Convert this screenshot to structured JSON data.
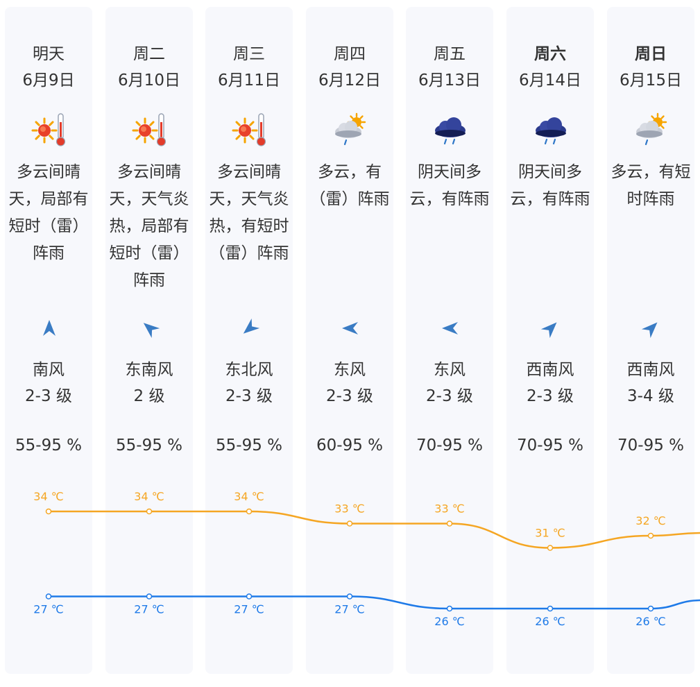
{
  "colors": {
    "high_line": "#f5a623",
    "low_line": "#1e7ae8",
    "card_bg": "#f7f8fc",
    "wind_arrow": "#3a7cc4",
    "sun": "#f6a400",
    "cloud_dark": "#2b3a8c"
  },
  "days": [
    {
      "name": "明天",
      "date": "6月9日",
      "weekend": false,
      "icon": "sunny-hot-icon",
      "desc": [
        "多云间晴",
        "天，局部有",
        "短时（雷）",
        "阵雨"
      ],
      "wind_dir": "南风",
      "wind_level": "2-3 级",
      "wind_deg": 0,
      "humidity": "55-95 %"
    },
    {
      "name": "周二",
      "date": "6月10日",
      "weekend": false,
      "icon": "sunny-hot-icon",
      "desc": [
        "多云间晴",
        "天，天气炎",
        "热，局部有",
        "短时（雷）",
        "阵雨"
      ],
      "wind_dir": "东南风",
      "wind_level": "2 级",
      "wind_deg": -50,
      "humidity": "55-95 %"
    },
    {
      "name": "周三",
      "date": "6月11日",
      "weekend": false,
      "icon": "sunny-hot-icon",
      "desc": [
        "多云间晴",
        "天，天气炎",
        "热，有短时",
        "（雷）阵雨"
      ],
      "wind_dir": "东北风",
      "wind_level": "2-3 级",
      "wind_deg": -130,
      "humidity": "55-95 %"
    },
    {
      "name": "周四",
      "date": "6月12日",
      "weekend": false,
      "icon": "partly-cloudy-rain-icon",
      "desc": [
        "多云，有",
        "（雷）阵雨"
      ],
      "wind_dir": "东风",
      "wind_level": "2-3 级",
      "wind_deg": -90,
      "humidity": "60-95 %"
    },
    {
      "name": "周五",
      "date": "6月13日",
      "weekend": false,
      "icon": "cloudy-rain-icon",
      "desc": [
        "阴天间多",
        "云，有阵雨"
      ],
      "wind_dir": "东风",
      "wind_level": "2-3 级",
      "wind_deg": -90,
      "humidity": "70-95 %"
    },
    {
      "name": "周六",
      "date": "6月14日",
      "weekend": true,
      "icon": "cloudy-rain-icon",
      "desc": [
        "阴天间多",
        "云，有阵雨"
      ],
      "wind_dir": "西南风",
      "wind_level": "2-3 级",
      "wind_deg": 45,
      "humidity": "70-95 %"
    },
    {
      "name": "周日",
      "date": "6月15日",
      "weekend": true,
      "icon": "partly-cloudy-rain-icon",
      "desc": [
        "多云，有短",
        "时阵雨"
      ],
      "wind_dir": "西南风",
      "wind_level": "3-4 级",
      "wind_deg": 45,
      "humidity": "70-95 %"
    }
  ],
  "chart_data": {
    "type": "line",
    "categories": [
      "6月9日",
      "6月10日",
      "6月11日",
      "6月12日",
      "6月13日",
      "6月14日",
      "6月15日"
    ],
    "unit": "℃",
    "series": [
      {
        "key": "high",
        "values": [
          34,
          34,
          34,
          33,
          33,
          31,
          32
        ],
        "labels": [
          "34 ℃",
          "34 ℃",
          "34 ℃",
          "33 ℃",
          "33 ℃",
          "31 ℃",
          "32 ℃"
        ]
      },
      {
        "key": "low",
        "values": [
          27,
          27,
          27,
          27,
          26,
          26,
          26
        ],
        "labels": [
          "27 ℃",
          "27 ℃",
          "27 ℃",
          "27 ℃",
          "26 ℃",
          "26 ℃",
          "26 ℃"
        ]
      }
    ]
  }
}
